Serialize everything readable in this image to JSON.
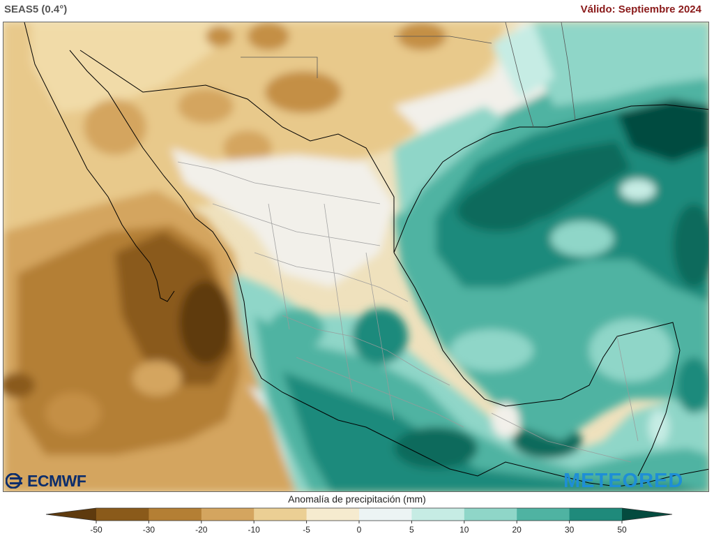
{
  "header": {
    "model": "SEAS5 (0.4°)",
    "valid": "Válido: Septiembre 2024"
  },
  "logos": {
    "left": "ECMWF",
    "right": "METEORED"
  },
  "colorbar": {
    "title": "Anomalía de precipitación (mm)",
    "ticks": [
      "-50",
      "-30",
      "-20",
      "-10",
      "-5",
      "0",
      "5",
      "10",
      "20",
      "30",
      "50"
    ],
    "colors": [
      "#5e3a0e",
      "#8a5a1a",
      "#b47f34",
      "#d4a55f",
      "#ebcf94",
      "#f6ebcf",
      "#ecf4f4",
      "#c6ece4",
      "#8fd6c8",
      "#4fb3a2",
      "#1f8a7b",
      "#0c6a5c",
      "#044b3f"
    ]
  },
  "map": {
    "variable": "precipitation anomaly",
    "colors": {
      "land_border": "#000000",
      "state_border": "#9a9a9a"
    }
  }
}
